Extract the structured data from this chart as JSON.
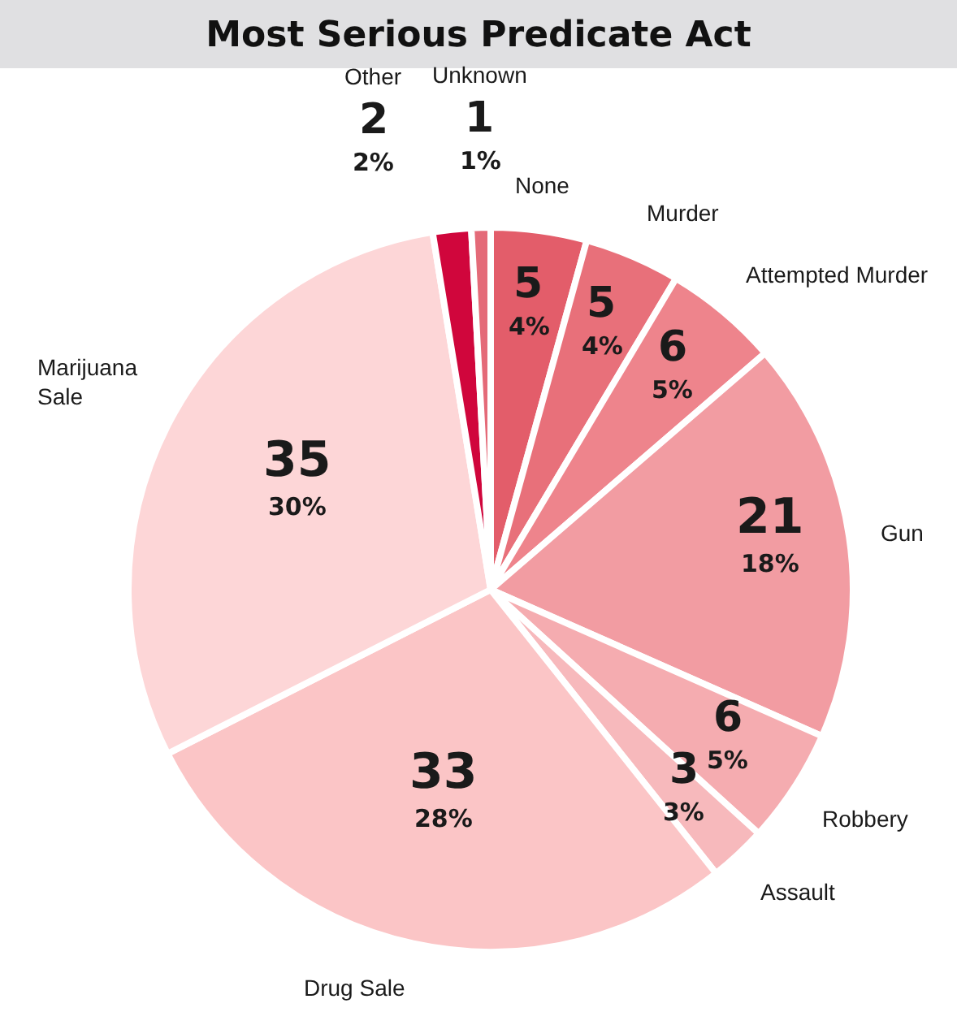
{
  "chart_data": {
    "type": "pie",
    "title": "Most Serious Predicate Act",
    "categories": [
      "None",
      "Murder",
      "Attempted Murder",
      "Gun",
      "Robbery",
      "Assault",
      "Drug Sale",
      "Marijuana Sale",
      "Other",
      "Unknown"
    ],
    "values": [
      5,
      5,
      6,
      21,
      6,
      3,
      33,
      35,
      2,
      1
    ],
    "value_labels": [
      "5\n4%",
      "5\n4%",
      "6\n5%",
      "21\n18%",
      "6\n5%",
      "3\n3%",
      "33\n28%",
      "35\n30%",
      "2\n2%",
      "1\n1%"
    ],
    "colors": [
      "#e35d6a",
      "#e8707a",
      "#ee848c",
      "#f29ca2",
      "#f5acb0",
      "#f7b9bc",
      "#fbc5c6",
      "#fdd6d7",
      "#d0063c",
      "#e46a78"
    ],
    "legend": false
  }
}
